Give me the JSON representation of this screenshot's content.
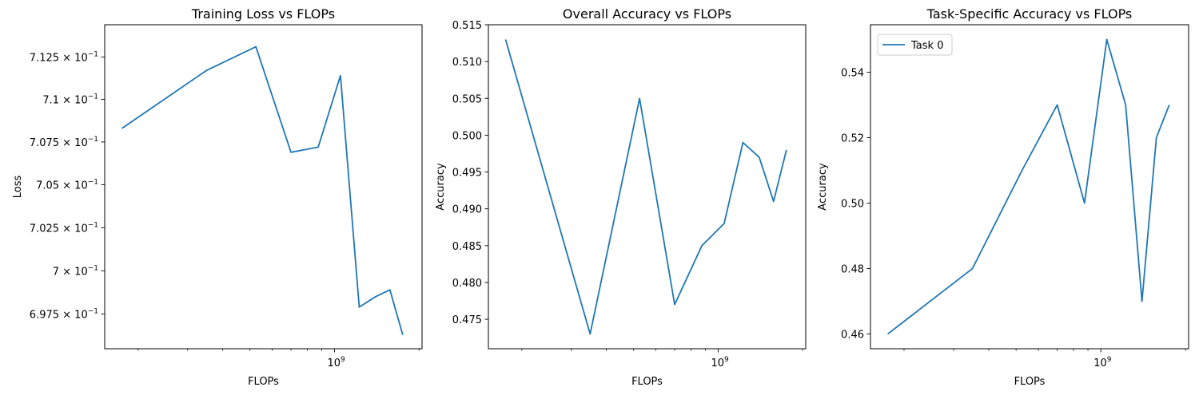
{
  "colors": {
    "series": "#1f77b4"
  },
  "chart_data": [
    {
      "type": "line",
      "title": "Training Loss vs FLOPs",
      "xlabel": "FLOPs",
      "ylabel": "Loss",
      "xscale": "log",
      "yscale": "log",
      "xlim": [
        152000000.0,
        2050000000.0
      ],
      "ylim": [
        0.6955,
        0.7144
      ],
      "x_ticks": [
        {
          "value": 1000000000.0,
          "base": "10",
          "exp": "9"
        }
      ],
      "y_ticks": [
        {
          "value": 0.6975,
          "mant": "6.975",
          "exp": "−1"
        },
        {
          "value": 0.7,
          "mant": "7",
          "exp": "−1"
        },
        {
          "value": 0.7025,
          "mant": "7.025",
          "exp": "−1"
        },
        {
          "value": 0.705,
          "mant": "7.05",
          "exp": "−1"
        },
        {
          "value": 0.7075,
          "mant": "7.075",
          "exp": "−1"
        },
        {
          "value": 0.71,
          "mant": "7.1",
          "exp": "−1"
        },
        {
          "value": 0.7125,
          "mant": "7.125",
          "exp": "−1"
        }
      ],
      "x": [
        175000000.0,
        350000000.0,
        525000000.0,
        700000000.0,
        875000000.0,
        1050000000.0,
        1225000000.0,
        1400000000.0,
        1575000000.0,
        1750000000.0
      ],
      "series": [
        {
          "name": "",
          "values": [
            0.7083,
            0.7117,
            0.7131,
            0.7069,
            0.7072,
            0.7114,
            0.6979,
            0.6985,
            0.6989,
            0.6963
          ]
        }
      ],
      "legend": null
    },
    {
      "type": "line",
      "title": "Overall Accuracy vs FLOPs",
      "xlabel": "FLOPs",
      "ylabel": "Accuracy",
      "xscale": "log",
      "yscale": "linear",
      "xlim": [
        152000000.0,
        2050000000.0
      ],
      "ylim": [
        0.471,
        0.515
      ],
      "x_ticks": [
        {
          "value": 1000000000.0,
          "base": "10",
          "exp": "9"
        }
      ],
      "y_ticks": [
        {
          "value": 0.475,
          "label": "0.475"
        },
        {
          "value": 0.48,
          "label": "0.480"
        },
        {
          "value": 0.485,
          "label": "0.485"
        },
        {
          "value": 0.49,
          "label": "0.490"
        },
        {
          "value": 0.495,
          "label": "0.495"
        },
        {
          "value": 0.5,
          "label": "0.500"
        },
        {
          "value": 0.505,
          "label": "0.505"
        },
        {
          "value": 0.51,
          "label": "0.510"
        },
        {
          "value": 0.515,
          "label": "0.515"
        }
      ],
      "x": [
        175000000.0,
        350000000.0,
        525000000.0,
        700000000.0,
        875000000.0,
        1050000000.0,
        1225000000.0,
        1400000000.0,
        1575000000.0,
        1750000000.0
      ],
      "series": [
        {
          "name": "",
          "values": [
            0.513,
            0.473,
            0.505,
            0.477,
            0.485,
            0.488,
            0.499,
            0.497,
            0.491,
            0.498
          ]
        }
      ],
      "legend": null
    },
    {
      "type": "line",
      "title": "Task-Specific Accuracy vs FLOPs",
      "xlabel": "FLOPs",
      "ylabel": "Accuracy",
      "xscale": "log",
      "yscale": "linear",
      "xlim": [
        152000000.0,
        2050000000.0
      ],
      "ylim": [
        0.4555,
        0.5545
      ],
      "x_ticks": [
        {
          "value": 1000000000.0,
          "base": "10",
          "exp": "9"
        }
      ],
      "y_ticks": [
        {
          "value": 0.46,
          "label": "0.46"
        },
        {
          "value": 0.48,
          "label": "0.48"
        },
        {
          "value": 0.5,
          "label": "0.50"
        },
        {
          "value": 0.52,
          "label": "0.52"
        },
        {
          "value": 0.54,
          "label": "0.54"
        }
      ],
      "x": [
        175000000.0,
        350000000.0,
        525000000.0,
        700000000.0,
        875000000.0,
        1050000000.0,
        1225000000.0,
        1400000000.0,
        1575000000.0,
        1750000000.0
      ],
      "series": [
        {
          "name": "Task 0",
          "values": [
            0.46,
            0.48,
            0.51,
            0.53,
            0.5,
            0.55,
            0.53,
            0.47,
            0.52,
            0.53
          ]
        }
      ],
      "legend": "upper left"
    }
  ]
}
